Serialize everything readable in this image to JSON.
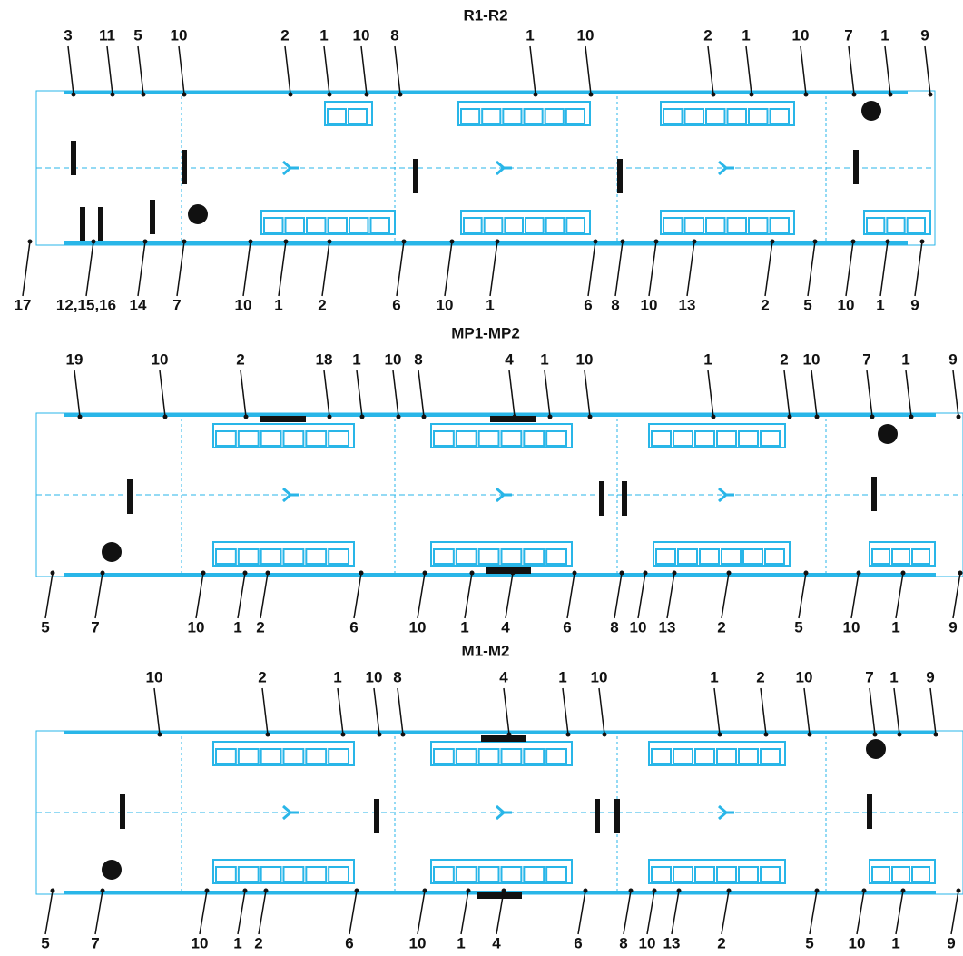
{
  "panels": [
    {
      "title": "R1-R2",
      "top_labels": [
        "3",
        "11",
        "5",
        "10",
        "2",
        "1",
        "10",
        "8",
        "1",
        "10",
        "2",
        "1",
        "10",
        "7",
        "1",
        "9"
      ],
      "bottom_labels": [
        "17",
        "12,15,16",
        "14",
        "7",
        "10",
        "1",
        "2",
        "6",
        "10",
        "1",
        "6",
        "8",
        "10",
        "13",
        "2",
        "5",
        "10",
        "1",
        "9"
      ]
    },
    {
      "title": "MP1-MP2",
      "top_labels": [
        "19",
        "10",
        "2",
        "18",
        "1",
        "10",
        "8",
        "4",
        "1",
        "10",
        "1",
        "2",
        "10",
        "7",
        "1",
        "9"
      ],
      "bottom_labels": [
        "5",
        "7",
        "10",
        "1",
        "2",
        "6",
        "10",
        "1",
        "4",
        "6",
        "8",
        "10",
        "13",
        "2",
        "5",
        "10",
        "1",
        "9"
      ]
    },
    {
      "title": "M1-M2",
      "top_labels": [
        "10",
        "2",
        "1",
        "10",
        "8",
        "4",
        "1",
        "10",
        "1",
        "2",
        "10",
        "7",
        "1",
        "9"
      ],
      "bottom_labels": [
        "5",
        "7",
        "10",
        "1",
        "2",
        "6",
        "10",
        "1",
        "4",
        "6",
        "8",
        "10",
        "13",
        "2",
        "5",
        "10",
        "1",
        "9"
      ]
    }
  ]
}
